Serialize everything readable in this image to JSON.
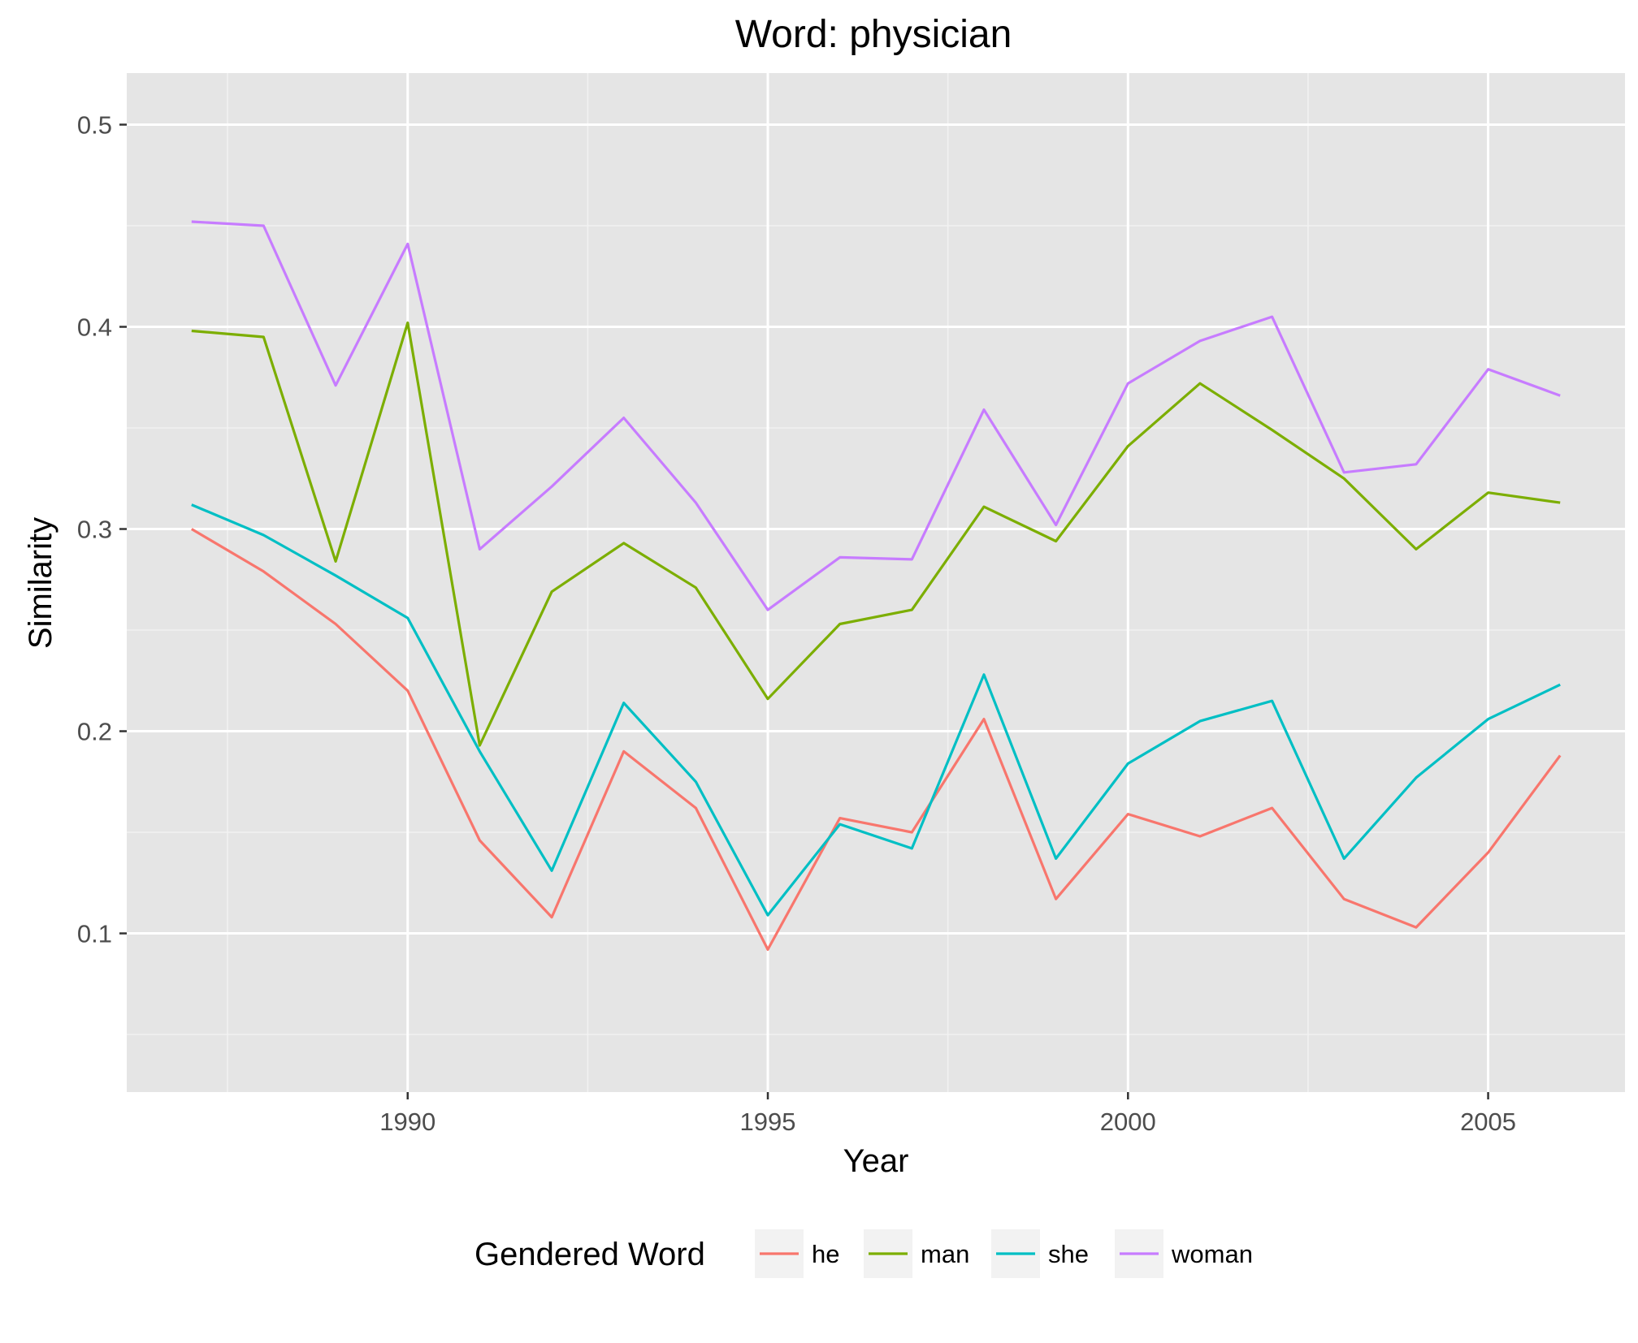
{
  "chart_data": {
    "type": "line",
    "title": "Word: physician",
    "xlabel": "Year",
    "ylabel": "Similarity",
    "xlim": [
      1986.1,
      2006.9
    ],
    "ylim": [
      0.0215,
      0.5255
    ],
    "x_ticks": [
      1990,
      1995,
      2000,
      2005
    ],
    "y_ticks": [
      0.1,
      0.2,
      0.3,
      0.4,
      0.5
    ],
    "x_tick_labels": [
      "1990",
      "1995",
      "2000",
      "2005"
    ],
    "y_tick_labels": [
      "0.1",
      "0.2",
      "0.3",
      "0.4",
      "0.5"
    ],
    "grid": true,
    "legend": {
      "title": "Gendered Word",
      "position": "bottom"
    },
    "x": [
      1987,
      1988,
      1989,
      1990,
      1991,
      1992,
      1993,
      1994,
      1995,
      1996,
      1997,
      1998,
      1999,
      2000,
      2001,
      2002,
      2003,
      2004,
      2005,
      2006
    ],
    "series": [
      {
        "name": "he",
        "color": "#F8766D",
        "values": [
          0.3,
          0.279,
          0.253,
          0.22,
          0.146,
          0.108,
          0.19,
          0.162,
          0.092,
          0.157,
          0.15,
          0.206,
          0.117,
          0.159,
          0.148,
          0.162,
          0.117,
          0.103,
          0.14,
          0.188
        ]
      },
      {
        "name": "man",
        "color": "#7CAE00",
        "values": [
          0.398,
          0.395,
          0.284,
          0.402,
          0.193,
          0.269,
          0.293,
          0.271,
          0.216,
          0.253,
          0.26,
          0.311,
          0.294,
          0.341,
          0.372,
          0.349,
          0.325,
          0.29,
          0.318,
          0.313
        ]
      },
      {
        "name": "she",
        "color": "#00BFC4",
        "values": [
          0.312,
          0.297,
          0.277,
          0.256,
          0.19,
          0.131,
          0.214,
          0.175,
          0.109,
          0.154,
          0.142,
          0.228,
          0.137,
          0.184,
          0.205,
          0.215,
          0.137,
          0.177,
          0.206,
          0.223
        ]
      },
      {
        "name": "woman",
        "color": "#C77CFF",
        "values": [
          0.452,
          0.45,
          0.371,
          0.441,
          0.29,
          0.321,
          0.355,
          0.313,
          0.26,
          0.286,
          0.285,
          0.359,
          0.302,
          0.372,
          0.393,
          0.405,
          0.328,
          0.332,
          0.379,
          0.366
        ]
      }
    ]
  }
}
